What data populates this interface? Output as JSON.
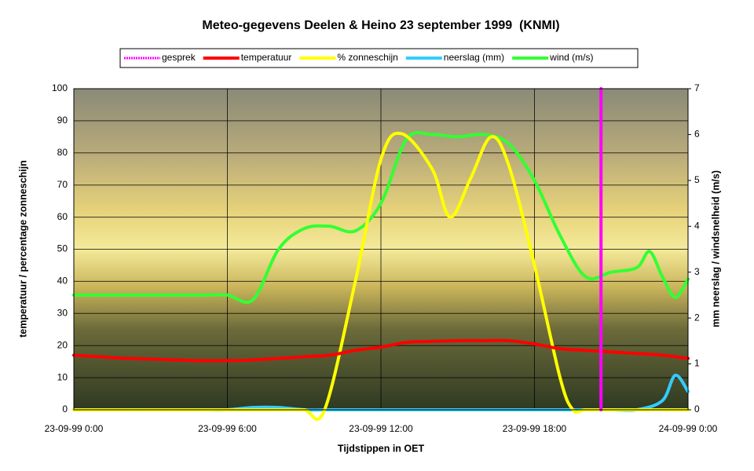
{
  "chart_data": {
    "type": "line",
    "title": "Meteo-gegevens Deelen & Heino 23 september 1999  (KNMI)",
    "x_label": "Tijdstippen in OET",
    "y_label": "temperatuur / percentage zonneschijn",
    "y2_label": "mm neerslag / windsnelheid (m/s)",
    "xlim": [
      0,
      24
    ],
    "xticks": [
      {
        "value": 0,
        "label": "23-09-99 0:00"
      },
      {
        "value": 6,
        "label": "23-09-99 6:00"
      },
      {
        "value": 12,
        "label": "23-09-99 12:00"
      },
      {
        "value": 18,
        "label": "23-09-99 18:00"
      },
      {
        "value": 24,
        "label": "24-09-99 0:00"
      }
    ],
    "ylim": [
      0,
      100
    ],
    "yticks": [
      0,
      10,
      20,
      30,
      40,
      50,
      60,
      70,
      80,
      90,
      100
    ],
    "y2lim": [
      0,
      7
    ],
    "y2ticks": [
      0,
      1,
      2,
      3,
      4,
      5,
      6,
      7
    ],
    "grid": true,
    "legend": "top",
    "series": [
      {
        "name": "gesprek",
        "color": "#ff00ff",
        "axis": "y2",
        "x": [
          20.6,
          20.6
        ],
        "values": [
          0,
          7
        ]
      },
      {
        "name": "temperatuur",
        "color": "#ff0000",
        "x": [
          0,
          1,
          2,
          3,
          4,
          5,
          6,
          7,
          8,
          9,
          10,
          11,
          12,
          13,
          14,
          15,
          16,
          17,
          18,
          19,
          20,
          21,
          22,
          23,
          24
        ],
        "values": [
          17,
          16.5,
          16,
          15.8,
          15.5,
          15.3,
          15.3,
          15.5,
          16,
          16.5,
          17,
          18.5,
          19.5,
          21,
          21.3,
          21.5,
          21.5,
          21.5,
          20.5,
          19,
          18.5,
          18,
          17.5,
          17,
          16
        ]
      },
      {
        "name": "% zonneschijn",
        "color": "#ffff00",
        "x": [
          0,
          1,
          2,
          3,
          4,
          5,
          6,
          7,
          8,
          9,
          9.8,
          11,
          12,
          12.8,
          14,
          14.7,
          15.5,
          16.3,
          17,
          18,
          19,
          19.5,
          20,
          21,
          22,
          23,
          24
        ],
        "values": [
          0,
          0,
          0,
          0,
          0,
          0,
          0,
          0,
          0,
          0,
          0,
          40,
          78,
          86,
          75,
          60,
          72,
          85,
          76,
          45,
          10,
          0,
          0,
          0,
          0,
          0,
          0
        ]
      },
      {
        "name": "neerslag (mm)",
        "color": "#33ccff",
        "axis": "y2",
        "x": [
          0,
          1,
          2,
          3,
          4,
          5,
          6,
          7,
          8,
          9,
          10,
          11,
          12,
          13,
          14,
          15,
          16,
          17,
          18,
          19,
          20,
          21,
          22,
          23,
          23.5,
          24
        ],
        "values": [
          0,
          0,
          0,
          0,
          0,
          0,
          0,
          0.05,
          0.05,
          0,
          0,
          0,
          0,
          0,
          0,
          0,
          0,
          0,
          0,
          0,
          0,
          0,
          0,
          0.2,
          0.75,
          0.4
        ]
      },
      {
        "name": "wind (m/s)",
        "color": "#33ff33",
        "axis": "y2",
        "x": [
          0,
          1,
          2,
          3,
          4,
          5,
          6,
          7,
          8,
          9,
          10,
          11,
          12,
          13,
          14,
          15,
          16,
          17,
          18,
          19,
          20,
          21,
          22,
          22.5,
          23,
          23.5,
          24
        ],
        "values": [
          2.5,
          2.5,
          2.5,
          2.5,
          2.5,
          2.5,
          2.5,
          2.4,
          3.5,
          3.95,
          4.0,
          3.9,
          4.5,
          5.9,
          6.0,
          5.95,
          6.0,
          5.8,
          5.0,
          3.8,
          2.9,
          3.0,
          3.1,
          3.45,
          2.9,
          2.45,
          2.85
        ]
      }
    ]
  }
}
